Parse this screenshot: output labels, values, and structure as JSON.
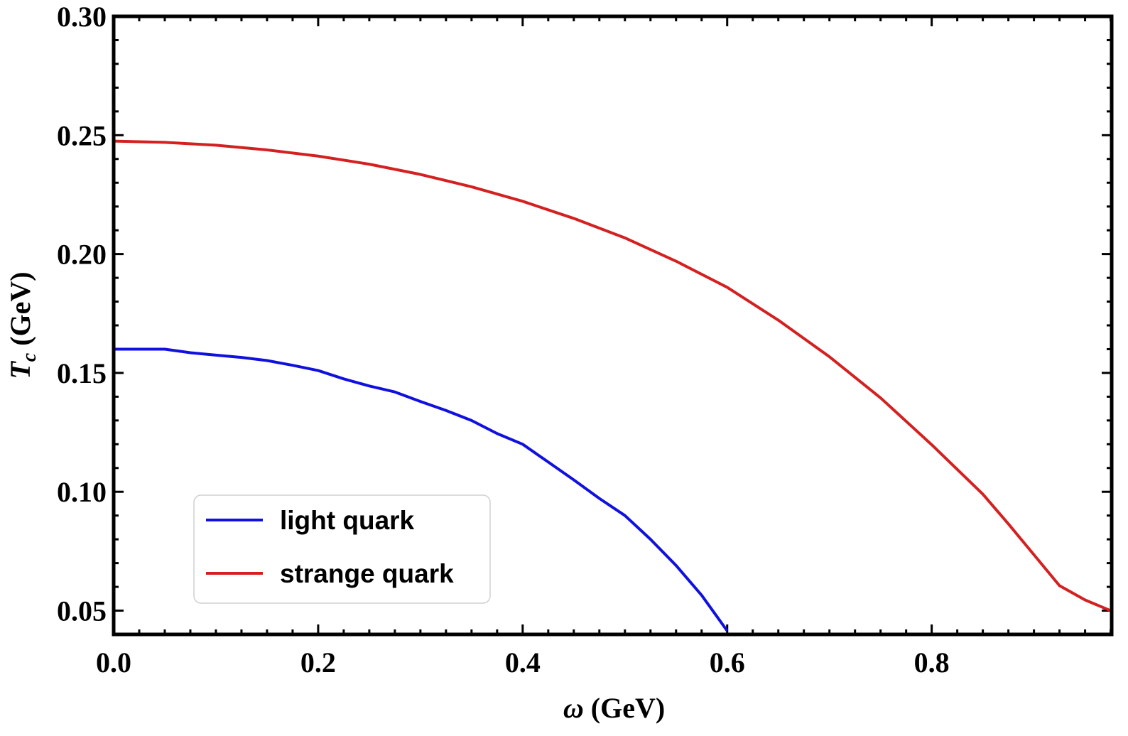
{
  "chart_data": {
    "type": "line",
    "xlabel": {
      "symbol": "ω",
      "unit": " (GeV)"
    },
    "ylabel": {
      "symbol": "T",
      "subscript": "c",
      "unit": " (GeV)"
    },
    "xlim": [
      0,
      0.976
    ],
    "ylim": [
      0.04,
      0.3
    ],
    "xticks": [
      0.0,
      0.2,
      0.4,
      0.6,
      0.8
    ],
    "xtick_labels": [
      "0.0",
      "0.2",
      "0.4",
      "0.6",
      "0.8"
    ],
    "yticks": [
      0.05,
      0.1,
      0.15,
      0.2,
      0.25,
      0.3
    ],
    "ytick_labels": [
      "0.05",
      "0.10",
      "0.15",
      "0.20",
      "0.25",
      "0.30"
    ],
    "grid": false,
    "legend_position": "bottom-left",
    "series": [
      {
        "name": "light quark",
        "color": "#1010e0",
        "x": [
          0.0,
          0.025,
          0.05,
          0.075,
          0.1,
          0.125,
          0.15,
          0.175,
          0.2,
          0.225,
          0.25,
          0.275,
          0.3,
          0.325,
          0.35,
          0.375,
          0.4,
          0.425,
          0.45,
          0.475,
          0.5,
          0.525,
          0.55,
          0.575,
          0.6
        ],
        "y": [
          0.16,
          0.16,
          0.16,
          0.1585,
          0.1575,
          0.1565,
          0.1552,
          0.1532,
          0.151,
          0.1475,
          0.1445,
          0.142,
          0.138,
          0.1342,
          0.13,
          0.1245,
          0.12,
          0.1125,
          0.105,
          0.0972,
          0.09,
          0.08,
          0.069,
          0.0565,
          0.0415
        ]
      },
      {
        "name": "strange quark",
        "color": "#d42020",
        "x": [
          0.0,
          0.05,
          0.1,
          0.15,
          0.2,
          0.25,
          0.3,
          0.35,
          0.4,
          0.45,
          0.5,
          0.55,
          0.6,
          0.65,
          0.7,
          0.75,
          0.8,
          0.85,
          0.875,
          0.9,
          0.925,
          0.95,
          0.975
        ],
        "y": [
          0.2475,
          0.247,
          0.2458,
          0.2438,
          0.2412,
          0.2378,
          0.2335,
          0.2283,
          0.2222,
          0.215,
          0.2068,
          0.197,
          0.186,
          0.1722,
          0.1568,
          0.1395,
          0.1198,
          0.099,
          0.0865,
          0.0735,
          0.0605,
          0.0545,
          0.05
        ]
      }
    ]
  }
}
